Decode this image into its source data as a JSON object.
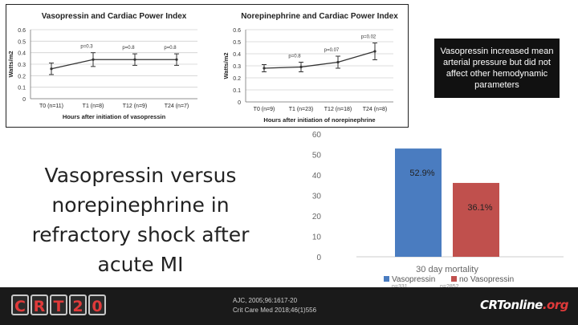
{
  "slide": {
    "title": "Vasopressin versus norepinephrine in refractory shock after acute MI",
    "callout": "Vasopressin increased mean arterial pressure but did not affect other hemodynamic parameters",
    "references": [
      "AJC, 2005;96:1617-20",
      "Crit Care Med 2018;46(1)556"
    ],
    "logo_left_letters": [
      "C",
      "R",
      "T",
      "2",
      "0"
    ],
    "logo_right_main": "CRTonline",
    "logo_right_suffix": ".org",
    "faint_labels": [
      "n=331",
      "n=2852"
    ]
  },
  "chart_data": [
    {
      "type": "line",
      "title": "Vasopressin and Cardiac Power Index",
      "xlabel": "Hours after initiation of vasopressin",
      "ylabel": "Watts/m2",
      "ylim": [
        0,
        0.6
      ],
      "yticks": [
        0,
        0.1,
        0.2,
        0.3,
        0.4,
        0.5,
        0.6
      ],
      "categories": [
        "T0 (n=11)",
        "T1 (n=8)",
        "T12 (n=9)",
        "T24 (n=7)"
      ],
      "values": [
        0.26,
        0.34,
        0.34,
        0.34
      ],
      "errors": [
        0.05,
        0.06,
        0.05,
        0.05
      ],
      "pvalues": [
        "p=0.3",
        "p=0.8",
        "p=0.8"
      ],
      "grid": true,
      "color": "#333333"
    },
    {
      "type": "line",
      "title": "Norepinephrine and Cardiac Power Index",
      "xlabel": "Hours after initiation of norepinephrine",
      "ylabel": "Watts/m2",
      "ylim": [
        0,
        0.6
      ],
      "yticks": [
        0,
        0.1,
        0.2,
        0.3,
        0.4,
        0.5,
        0.6
      ],
      "categories": [
        "T0 (n=9)",
        "T1 (n=23)",
        "T12 (n=18)",
        "T24 (n=8)"
      ],
      "values": [
        0.28,
        0.29,
        0.33,
        0.42
      ],
      "errors": [
        0.03,
        0.04,
        0.05,
        0.07
      ],
      "pvalues": [
        "p=0.8",
        "p=0.07",
        "p=0.02"
      ],
      "grid": true,
      "color": "#333333"
    },
    {
      "type": "bar",
      "title": "30 day mortality",
      "categories": [
        "Vasopressin",
        "no Vasopressin"
      ],
      "values": [
        52.9,
        36.1
      ],
      "value_labels": [
        "52.9%",
        "36.1%"
      ],
      "ylim": [
        0,
        60
      ],
      "yticks": [
        0,
        10,
        20,
        30,
        40,
        50,
        60
      ],
      "colors": [
        "#4a7cc0",
        "#c0504d"
      ],
      "legend": [
        "Vasopressin",
        "no Vasopressin"
      ],
      "legend_position": "bottom"
    }
  ]
}
